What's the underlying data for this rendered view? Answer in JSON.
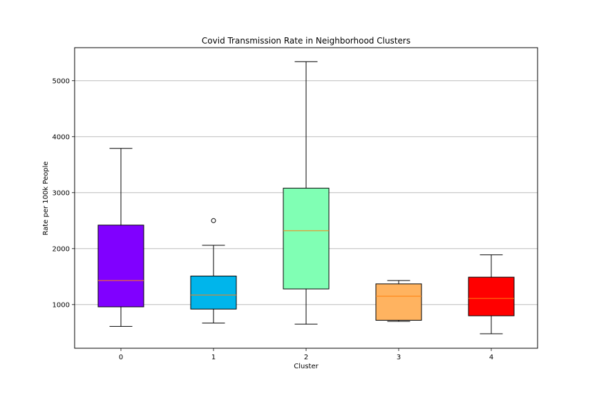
{
  "chart_data": {
    "type": "box",
    "title": "Covid Transmission Rate in Neighborhood Clusters",
    "xlabel": "Cluster",
    "ylabel": "Rate per 100k People",
    "categories": [
      "0",
      "1",
      "2",
      "3",
      "4"
    ],
    "yticks": [
      1000,
      2000,
      3000,
      4000,
      5000
    ],
    "ytick_labels": [
      "1000",
      "2000",
      "3000",
      "4000",
      "5000"
    ],
    "ylim": [
      220,
      5590
    ],
    "grid": "horizontal",
    "boxes": [
      {
        "category": "0",
        "color": "#8000ff",
        "whisker_low": 610,
        "q1": 960,
        "median": 1430,
        "q3": 2420,
        "whisker_high": 3790,
        "outliers": []
      },
      {
        "category": "1",
        "color": "#00b5eb",
        "whisker_low": 670,
        "q1": 920,
        "median": 1170,
        "q3": 1510,
        "whisker_high": 2060,
        "outliers": [
          2500
        ]
      },
      {
        "category": "2",
        "color": "#80ffb4",
        "whisker_low": 650,
        "q1": 1280,
        "median": 2320,
        "q3": 3080,
        "whisker_high": 5340,
        "outliers": []
      },
      {
        "category": "3",
        "color": "#ffb360",
        "whisker_low": 700,
        "q1": 720,
        "median": 1150,
        "q3": 1370,
        "whisker_high": 1430,
        "outliers": []
      },
      {
        "category": "4",
        "color": "#ff0000",
        "whisker_low": 480,
        "q1": 800,
        "median": 1110,
        "q3": 1490,
        "whisker_high": 1890,
        "outliers": []
      }
    ],
    "median_color": "#ff7f0e"
  }
}
